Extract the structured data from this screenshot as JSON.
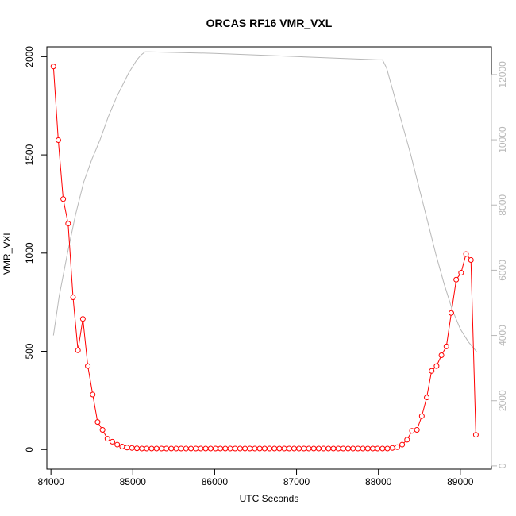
{
  "chart_data": {
    "type": "line",
    "title": "ORCAS RF16 VMR_VXL",
    "xlabel": "UTC Seconds",
    "ylabel": "VMR_VXL",
    "xlim": [
      83950,
      89380
    ],
    "ylim": [
      -100,
      2050
    ],
    "y2lim": [
      -100,
      12850
    ],
    "x_ticks": [
      84000,
      85000,
      86000,
      87000,
      88000,
      89000
    ],
    "y_ticks": [
      0,
      500,
      1000,
      1500,
      2000
    ],
    "y2_ticks": [
      0,
      2000,
      4000,
      6000,
      8000,
      10000,
      12000
    ],
    "grid": false,
    "series": [
      {
        "color": "#ff0000",
        "style": "line-with-open-circles",
        "axis": "left",
        "x": [
          84030,
          84090,
          84150,
          84210,
          84270,
          84330,
          84390,
          84450,
          84510,
          84570,
          84630,
          84690,
          84750,
          84810,
          84870,
          84930,
          84990,
          85050,
          85110,
          85170,
          85230,
          85290,
          85350,
          85410,
          85470,
          85530,
          85590,
          85650,
          85710,
          85770,
          85830,
          85890,
          85950,
          86010,
          86070,
          86130,
          86190,
          86250,
          86310,
          86370,
          86430,
          86490,
          86550,
          86610,
          86670,
          86730,
          86790,
          86850,
          86910,
          86970,
          87030,
          87090,
          87150,
          87210,
          87270,
          87330,
          87390,
          87450,
          87510,
          87570,
          87630,
          87690,
          87750,
          87810,
          87870,
          87930,
          87990,
          88050,
          88110,
          88170,
          88230,
          88290,
          88350,
          88410,
          88470,
          88530,
          88590,
          88650,
          88710,
          88770,
          88830,
          88890,
          88950,
          89010,
          89070,
          89130,
          89190
        ],
        "y": [
          1950,
          1575,
          1275,
          1150,
          775,
          505,
          665,
          425,
          280,
          140,
          100,
          55,
          40,
          25,
          15,
          10,
          8,
          6,
          5,
          5,
          5,
          5,
          5,
          5,
          5,
          5,
          5,
          5,
          5,
          5,
          5,
          5,
          5,
          5,
          5,
          5,
          5,
          5,
          5,
          5,
          5,
          5,
          5,
          5,
          5,
          5,
          5,
          5,
          5,
          5,
          5,
          5,
          5,
          5,
          5,
          5,
          5,
          5,
          5,
          5,
          5,
          5,
          5,
          5,
          5,
          5,
          5,
          5,
          5,
          8,
          12,
          25,
          50,
          95,
          100,
          170,
          265,
          400,
          425,
          480,
          525,
          695,
          865,
          900,
          995,
          965,
          75
        ]
      },
      {
        "color": "#b8b8b8",
        "style": "line",
        "axis": "right",
        "x": [
          84030,
          84100,
          84200,
          84300,
          84400,
          84450,
          84500,
          84550,
          84600,
          84650,
          84700,
          84750,
          84800,
          84850,
          84900,
          84950,
          85000,
          85050,
          85100,
          85150,
          85200,
          86000,
          87000,
          87500,
          88000,
          88050,
          88100,
          88200,
          88300,
          88400,
          88500,
          88600,
          88700,
          88800,
          88900,
          89000,
          89100,
          89200
        ],
        "y": [
          4000,
          5200,
          6500,
          7700,
          8700,
          9050,
          9400,
          9700,
          10000,
          10350,
          10700,
          11000,
          11300,
          11550,
          11800,
          12050,
          12250,
          12450,
          12600,
          12700,
          12700,
          12650,
          12550,
          12500,
          12450,
          12450,
          12200,
          11300,
          10400,
          9500,
          8500,
          7500,
          6500,
          5600,
          4800,
          4200,
          3800,
          3500
        ]
      }
    ]
  }
}
